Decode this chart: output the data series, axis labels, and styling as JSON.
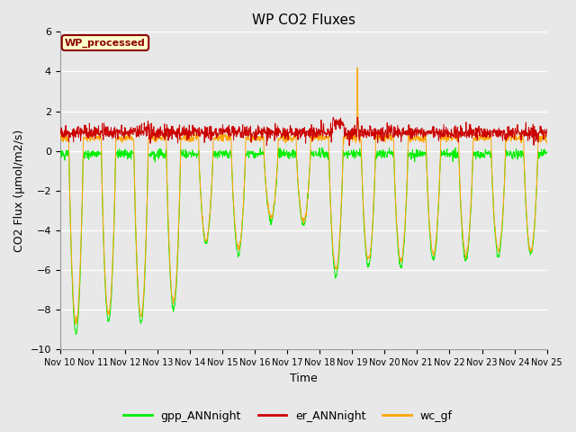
{
  "title": "WP CO2 Fluxes",
  "xlabel": "Time",
  "ylabel": "CO2 Flux (μmol/m2/s)",
  "ylim": [
    -10,
    6
  ],
  "yticks": [
    -10,
    -8,
    -6,
    -4,
    -2,
    0,
    2,
    4,
    6
  ],
  "plot_bg_color": "#e8e8e8",
  "fig_bg_color": "#e8e8e8",
  "grid_color": "white",
  "colors": {
    "gpp": "#00ee00",
    "er": "#cc0000",
    "wc": "#ffa500"
  },
  "legend_label": "WP_processed",
  "legend_border_color": "#8b0000",
  "legend_bg_color": "#ffffcc",
  "start_day": 10,
  "end_day": 25,
  "n_points_per_day": 96,
  "day_amplitudes_gpp": [
    9.2,
    8.6,
    8.7,
    8.0,
    4.6,
    5.2,
    3.5,
    3.7,
    6.3,
    5.8,
    5.8,
    5.5,
    5.5,
    5.3,
    5.2
  ],
  "day_amplitudes_wc": [
    8.7,
    8.2,
    8.3,
    7.6,
    4.5,
    4.9,
    3.3,
    3.5,
    6.0,
    5.5,
    5.5,
    5.2,
    5.2,
    5.0,
    5.0
  ],
  "figsize": [
    6.4,
    4.8
  ],
  "dpi": 100
}
